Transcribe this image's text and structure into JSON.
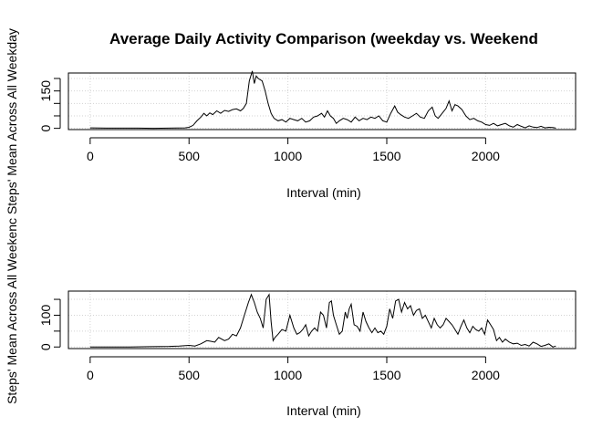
{
  "title": "Average Daily Activity Comparison (weekday vs. Weekend",
  "chart_data": [
    {
      "type": "line",
      "name": "weekday",
      "xlabel": "Interval (min)",
      "ylabel": "Steps' Mean Across All Weekday",
      "xlim": [
        -110,
        2455
      ],
      "ylim": [
        -5,
        222
      ],
      "xticks": [
        0,
        500,
        1000,
        1500,
        2000
      ],
      "yticks": [
        0,
        50,
        100,
        150,
        200
      ],
      "ytick_labels": [
        "0",
        "",
        "",
        "150",
        ""
      ],
      "grid": true,
      "x": [
        0,
        80,
        160,
        240,
        320,
        400,
        480,
        500,
        520,
        540,
        560,
        575,
        590,
        605,
        620,
        640,
        660,
        680,
        700,
        720,
        740,
        760,
        775,
        790,
        805,
        820,
        830,
        840,
        850,
        870,
        885,
        900,
        915,
        930,
        950,
        970,
        990,
        1010,
        1030,
        1050,
        1070,
        1090,
        1110,
        1130,
        1150,
        1170,
        1185,
        1200,
        1215,
        1230,
        1245,
        1260,
        1280,
        1300,
        1320,
        1340,
        1360,
        1380,
        1400,
        1420,
        1440,
        1460,
        1480,
        1500,
        1520,
        1540,
        1555,
        1570,
        1590,
        1610,
        1630,
        1650,
        1670,
        1690,
        1710,
        1730,
        1745,
        1760,
        1780,
        1800,
        1815,
        1830,
        1845,
        1860,
        1880,
        1900,
        1920,
        1940,
        1960,
        1980,
        2000,
        2020,
        2040,
        2060,
        2080,
        2100,
        2120,
        2140,
        2160,
        2180,
        2200,
        2220,
        2240,
        2260,
        2280,
        2300,
        2320,
        2340,
        2355
      ],
      "y": [
        2,
        1,
        1,
        1,
        0,
        1,
        2,
        4,
        12,
        30,
        45,
        60,
        50,
        62,
        55,
        70,
        60,
        72,
        68,
        75,
        78,
        70,
        80,
        100,
        190,
        230,
        180,
        210,
        200,
        190,
        150,
        100,
        60,
        40,
        30,
        35,
        25,
        40,
        35,
        30,
        40,
        25,
        30,
        45,
        50,
        60,
        45,
        70,
        50,
        40,
        20,
        30,
        40,
        35,
        25,
        45,
        30,
        40,
        35,
        45,
        40,
        50,
        30,
        25,
        60,
        90,
        65,
        55,
        45,
        40,
        50,
        60,
        45,
        40,
        70,
        85,
        50,
        40,
        60,
        80,
        110,
        70,
        95,
        90,
        75,
        50,
        35,
        40,
        30,
        25,
        15,
        12,
        20,
        10,
        15,
        20,
        10,
        5,
        15,
        8,
        2,
        10,
        5,
        3,
        8,
        2,
        4,
        3,
        1
      ]
    },
    {
      "type": "line",
      "name": "weekend",
      "xlabel": "Interval (min)",
      "ylabel": "Steps' Mean Across All Weekenc",
      "xlim": [
        -110,
        2455
      ],
      "ylim": [
        -5,
        176
      ],
      "xticks": [
        0,
        500,
        1000,
        1500,
        2000
      ],
      "yticks": [
        0,
        50,
        100,
        150
      ],
      "ytick_labels": [
        "0",
        "",
        "100",
        ""
      ],
      "grid": true,
      "x": [
        0,
        100,
        200,
        300,
        400,
        450,
        500,
        530,
        560,
        590,
        610,
        630,
        650,
        680,
        700,
        720,
        740,
        760,
        780,
        800,
        815,
        830,
        845,
        860,
        875,
        890,
        905,
        915,
        925,
        935,
        950,
        970,
        990,
        1010,
        1030,
        1045,
        1060,
        1075,
        1090,
        1105,
        1120,
        1135,
        1150,
        1165,
        1180,
        1195,
        1210,
        1220,
        1230,
        1245,
        1260,
        1275,
        1290,
        1300,
        1310,
        1320,
        1335,
        1350,
        1365,
        1380,
        1395,
        1410,
        1425,
        1440,
        1455,
        1470,
        1485,
        1500,
        1515,
        1530,
        1545,
        1560,
        1575,
        1590,
        1605,
        1620,
        1635,
        1650,
        1665,
        1680,
        1695,
        1710,
        1725,
        1740,
        1755,
        1770,
        1785,
        1800,
        1815,
        1830,
        1845,
        1860,
        1875,
        1890,
        1905,
        1920,
        1935,
        1950,
        1965,
        1980,
        1995,
        2010,
        2025,
        2040,
        2055,
        2070,
        2085,
        2100,
        2120,
        2140,
        2160,
        2180,
        2200,
        2220,
        2240,
        2260,
        2280,
        2300,
        2320,
        2340,
        2355
      ],
      "y": [
        0,
        0,
        0,
        1,
        2,
        3,
        5,
        3,
        10,
        20,
        18,
        15,
        30,
        20,
        25,
        40,
        35,
        60,
        100,
        140,
        165,
        140,
        110,
        90,
        60,
        150,
        165,
        80,
        20,
        30,
        40,
        55,
        50,
        100,
        60,
        40,
        45,
        55,
        70,
        35,
        50,
        60,
        50,
        110,
        100,
        60,
        140,
        145,
        100,
        70,
        40,
        50,
        110,
        90,
        120,
        135,
        70,
        65,
        50,
        110,
        80,
        60,
        45,
        60,
        45,
        50,
        40,
        65,
        120,
        90,
        145,
        150,
        110,
        140,
        120,
        130,
        100,
        115,
        120,
        90,
        100,
        80,
        60,
        90,
        70,
        60,
        70,
        90,
        80,
        70,
        55,
        40,
        65,
        85,
        60,
        45,
        65,
        55,
        50,
        60,
        40,
        85,
        70,
        55,
        20,
        30,
        15,
        25,
        15,
        10,
        12,
        5,
        8,
        3,
        15,
        10,
        2,
        5,
        10,
        0,
        3
      ]
    }
  ]
}
